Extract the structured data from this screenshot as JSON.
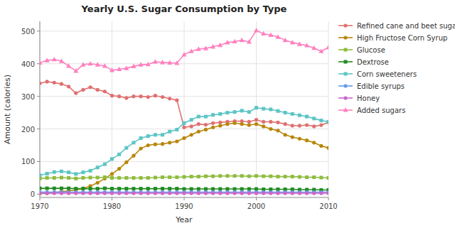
{
  "chart_data": {
    "type": "line",
    "title": "Yearly U.S. Sugar Consumption by Type",
    "xlabel": "Year",
    "ylabel": "Amount (calories)",
    "x": [
      1970,
      1971,
      1972,
      1973,
      1974,
      1975,
      1976,
      1977,
      1978,
      1979,
      1980,
      1981,
      1982,
      1983,
      1984,
      1985,
      1986,
      1987,
      1988,
      1989,
      1990,
      1991,
      1992,
      1993,
      1994,
      1995,
      1996,
      1997,
      1998,
      1999,
      2000,
      2001,
      2002,
      2003,
      2004,
      2005,
      2006,
      2007,
      2008,
      2009,
      2010
    ],
    "xlim": [
      1970,
      2010
    ],
    "ylim": [
      -10,
      530
    ],
    "xticks": [
      1970,
      1980,
      1990,
      2000,
      2010
    ],
    "yticks": [
      0,
      100,
      200,
      300,
      400,
      500
    ],
    "grid": true,
    "legend": "right",
    "series": [
      {
        "name": "Refined cane and beet sugar",
        "color": "#e07070",
        "marker": "circle",
        "values": [
          340,
          345,
          342,
          338,
          330,
          310,
          320,
          328,
          320,
          315,
          302,
          300,
          295,
          300,
          300,
          298,
          302,
          298,
          293,
          288,
          205,
          208,
          215,
          213,
          218,
          220,
          222,
          224,
          224,
          222,
          228,
          222,
          222,
          220,
          215,
          210,
          210,
          212,
          208,
          212,
          220
        ]
      },
      {
        "name": "High Fructose Corn Syrup",
        "color": "#b8860b",
        "marker": "circle",
        "values": [
          2,
          3,
          5,
          8,
          10,
          13,
          18,
          25,
          35,
          48,
          62,
          78,
          98,
          118,
          140,
          150,
          153,
          154,
          158,
          162,
          172,
          182,
          192,
          198,
          205,
          210,
          215,
          218,
          215,
          212,
          215,
          208,
          200,
          195,
          182,
          175,
          170,
          165,
          158,
          148,
          142
        ]
      },
      {
        "name": "Glucose",
        "color": "#8fbc3f",
        "marker": "square",
        "values": [
          48,
          50,
          50,
          51,
          50,
          48,
          50,
          51,
          51,
          52,
          50,
          50,
          50,
          50,
          50,
          50,
          51,
          52,
          52,
          52,
          53,
          54,
          54,
          55,
          55,
          56,
          56,
          56,
          56,
          55,
          56,
          55,
          55,
          54,
          54,
          54,
          53,
          52,
          52,
          51,
          50
        ]
      },
      {
        "name": "Dextrose",
        "color": "#228B22",
        "marker": "square",
        "values": [
          18,
          18,
          18,
          18,
          18,
          17,
          17,
          17,
          17,
          18,
          17,
          17,
          17,
          17,
          17,
          17,
          17,
          17,
          17,
          17,
          16,
          16,
          16,
          16,
          16,
          16,
          16,
          16,
          16,
          16,
          16,
          15,
          15,
          15,
          15,
          15,
          14,
          14,
          14,
          13,
          13
        ]
      },
      {
        "name": "Corn sweeteners",
        "color": "#5cc5c5",
        "marker": "square",
        "values": [
          58,
          63,
          68,
          70,
          67,
          62,
          67,
          72,
          82,
          92,
          108,
          122,
          142,
          158,
          172,
          178,
          182,
          182,
          192,
          198,
          218,
          228,
          238,
          238,
          243,
          246,
          250,
          252,
          256,
          252,
          265,
          262,
          260,
          255,
          250,
          246,
          242,
          238,
          232,
          226,
          222
        ]
      },
      {
        "name": "Edible syrups",
        "color": "#6699ee",
        "marker": "circle",
        "values": [
          6,
          6,
          6,
          6,
          6,
          6,
          6,
          6,
          6,
          6,
          6,
          6,
          6,
          6,
          6,
          6,
          6,
          6,
          6,
          6,
          6,
          6,
          6,
          6,
          6,
          6,
          6,
          6,
          6,
          6,
          6,
          6,
          6,
          6,
          6,
          6,
          6,
          6,
          6,
          6,
          6
        ]
      },
      {
        "name": "Honey",
        "color": "#cc66cc",
        "marker": "circle",
        "values": [
          3,
          3,
          3,
          3,
          3,
          3,
          3,
          3,
          3,
          3,
          3,
          3,
          3,
          3,
          3,
          3,
          3,
          3,
          3,
          3,
          3,
          3,
          3,
          3,
          3,
          3,
          3,
          3,
          3,
          3,
          3,
          3,
          3,
          3,
          3,
          3,
          3,
          3,
          3,
          3,
          3
        ]
      },
      {
        "name": "Added sugars",
        "color": "#ff80c0",
        "marker": "triangle",
        "values": [
          403,
          410,
          413,
          408,
          393,
          378,
          397,
          400,
          397,
          393,
          380,
          383,
          386,
          392,
          397,
          398,
          406,
          404,
          403,
          402,
          428,
          438,
          445,
          447,
          452,
          457,
          465,
          468,
          472,
          467,
          502,
          492,
          488,
          482,
          472,
          465,
          460,
          456,
          448,
          438,
          450
        ]
      }
    ]
  }
}
